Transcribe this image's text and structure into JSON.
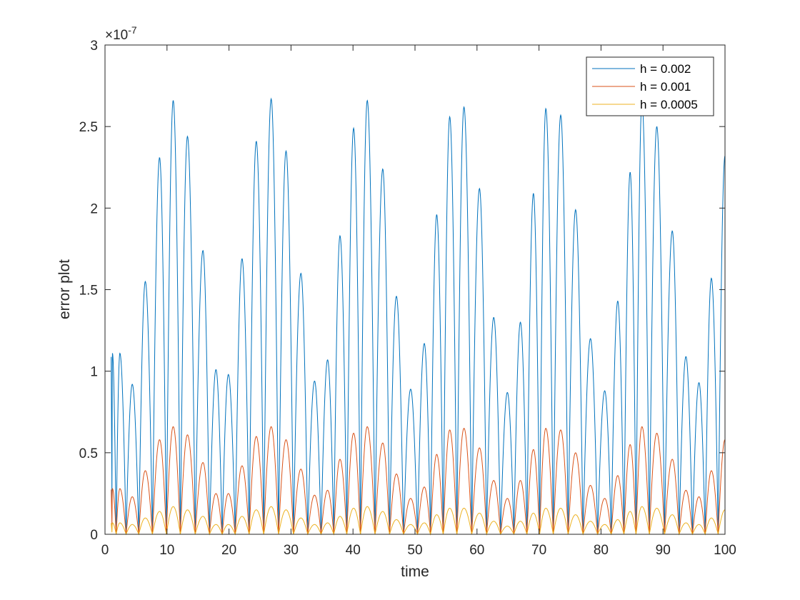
{
  "chart_data": {
    "type": "line",
    "title": "",
    "xlabel": "time",
    "ylabel": "error plot",
    "xlim": [
      0,
      100
    ],
    "ylim": [
      0,
      3e-07
    ],
    "y_exponent_label": "×10",
    "y_exponent_power": "-7",
    "x_ticks": [
      0,
      10,
      20,
      30,
      40,
      50,
      60,
      70,
      80,
      90,
      100
    ],
    "x_tick_labels": [
      "0",
      "10",
      "20",
      "30",
      "40",
      "50",
      "60",
      "70",
      "80",
      "90",
      "100"
    ],
    "y_ticks": [
      0,
      5e-08,
      1e-07,
      1.5e-07,
      2e-07,
      2.5e-07,
      3e-07
    ],
    "y_tick_labels": [
      "0",
      "0.5",
      "1",
      "1.5",
      "2",
      "2.5",
      "3"
    ],
    "grid": false,
    "legend_position": "top-right",
    "zero_spacing": 2.2,
    "series": [
      {
        "name": "h = 0.002",
        "color": "#0072BD",
        "peaks_x": [
          1.2,
          2.4,
          4.4,
          6.5,
          8.8,
          11.0,
          13.3,
          15.8,
          17.9,
          19.9,
          22.1,
          24.4,
          26.8,
          29.2,
          31.6,
          33.8,
          35.9,
          37.9,
          40.1,
          42.3,
          44.8,
          47.0,
          49.3,
          51.5,
          53.5,
          55.6,
          57.9,
          60.4,
          62.7,
          64.9,
          67.0,
          69.1,
          71.1,
          73.5,
          75.9,
          78.3,
          80.6,
          82.7,
          84.7,
          86.6,
          89.0,
          91.5,
          93.7,
          95.8,
          97.8,
          100.0
        ],
        "peaks_y": [
          1.11e-07,
          1.11e-07,
          9.2e-08,
          1.55e-07,
          2.31e-07,
          2.66e-07,
          2.44e-07,
          1.74e-07,
          1.01e-07,
          9.8e-08,
          1.69e-07,
          2.41e-07,
          2.67e-07,
          2.35e-07,
          1.6e-07,
          9.4e-08,
          1.07e-07,
          1.83e-07,
          2.49e-07,
          2.66e-07,
          2.24e-07,
          1.46e-07,
          8.9e-08,
          1.17e-07,
          1.96e-07,
          2.56e-07,
          2.62e-07,
          2.12e-07,
          1.33e-07,
          8.7e-08,
          1.3e-07,
          2.09e-07,
          2.61e-07,
          2.57e-07,
          1.99e-07,
          1.2e-07,
          8.8e-08,
          1.43e-07,
          2.22e-07,
          2.65e-07,
          2.5e-07,
          1.86e-07,
          1.09e-07,
          9.3e-08,
          1.57e-07,
          2.32e-07
        ]
      },
      {
        "name": "h = 0.001",
        "color": "#D95319",
        "peaks_x": [
          1.2,
          2.4,
          4.4,
          6.5,
          8.8,
          11.0,
          13.3,
          15.8,
          17.9,
          19.9,
          22.1,
          24.4,
          26.8,
          29.2,
          31.6,
          33.8,
          35.9,
          37.9,
          40.1,
          42.3,
          44.8,
          47.0,
          49.3,
          51.5,
          53.5,
          55.6,
          57.9,
          60.4,
          62.7,
          64.9,
          67.0,
          69.1,
          71.1,
          73.5,
          75.9,
          78.3,
          80.6,
          82.7,
          84.7,
          86.6,
          89.0,
          91.5,
          93.7,
          95.8,
          97.8,
          100.0
        ],
        "peaks_y": [
          2.8e-08,
          2.8e-08,
          2.3e-08,
          3.9e-08,
          5.8e-08,
          6.6e-08,
          6.1e-08,
          4.4e-08,
          2.5e-08,
          2.5e-08,
          4.2e-08,
          6e-08,
          6.6e-08,
          5.8e-08,
          4e-08,
          2.4e-08,
          2.7e-08,
          4.6e-08,
          6.2e-08,
          6.6e-08,
          5.6e-08,
          3.7e-08,
          2.2e-08,
          2.9e-08,
          4.9e-08,
          6.4e-08,
          6.5e-08,
          5.3e-08,
          3.3e-08,
          2.2e-08,
          3.3e-08,
          5.2e-08,
          6.5e-08,
          6.4e-08,
          5e-08,
          3e-08,
          2.2e-08,
          3.6e-08,
          5.5e-08,
          6.6e-08,
          6.2e-08,
          4.6e-08,
          2.7e-08,
          2.3e-08,
          3.9e-08,
          5.8e-08
        ]
      },
      {
        "name": "h = 0.0005",
        "color": "#EDB120",
        "peaks_x": [
          1.2,
          2.4,
          4.4,
          6.5,
          8.8,
          11.0,
          13.3,
          15.8,
          17.9,
          19.9,
          22.1,
          24.4,
          26.8,
          29.2,
          31.6,
          33.8,
          35.9,
          37.9,
          40.1,
          42.3,
          44.8,
          47.0,
          49.3,
          51.5,
          53.5,
          55.6,
          57.9,
          60.4,
          62.7,
          64.9,
          67.0,
          69.1,
          71.1,
          73.5,
          75.9,
          78.3,
          80.6,
          82.7,
          84.7,
          86.6,
          89.0,
          91.5,
          93.7,
          95.8,
          97.8,
          100.0
        ],
        "peaks_y": [
          7e-09,
          7e-09,
          6e-09,
          1e-08,
          1.4e-08,
          1.7e-08,
          1.5e-08,
          1.1e-08,
          6e-09,
          6e-09,
          1.1e-08,
          1.5e-08,
          1.7e-08,
          1.5e-08,
          1e-08,
          6e-09,
          7e-09,
          1.1e-08,
          1.6e-08,
          1.7e-08,
          1.4e-08,
          9e-09,
          6e-09,
          7e-09,
          1.2e-08,
          1.6e-08,
          1.6e-08,
          1.3e-08,
          8e-09,
          5e-09,
          8e-09,
          1.3e-08,
          1.6e-08,
          1.6e-08,
          1.2e-08,
          8e-09,
          6e-09,
          9e-09,
          1.4e-08,
          1.7e-08,
          1.6e-08,
          1.2e-08,
          7e-09,
          6e-09,
          1e-08,
          1.5e-08
        ]
      }
    ]
  }
}
